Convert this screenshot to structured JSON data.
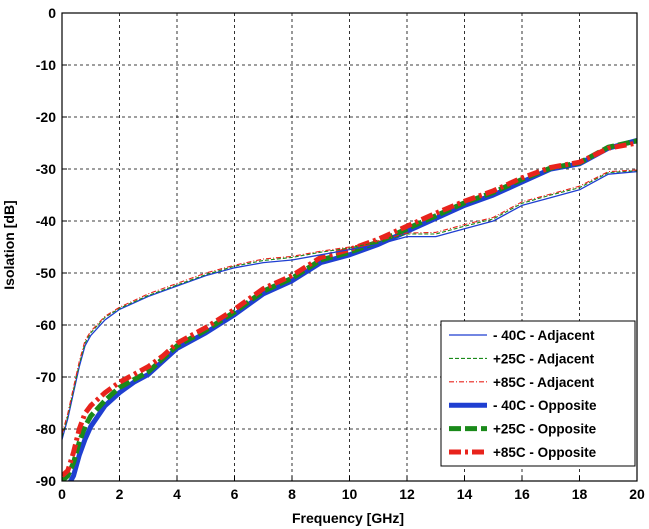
{
  "chart_data": {
    "type": "line",
    "xlabel": "Frequency [GHz]",
    "ylabel": "Isolation [dB]",
    "xlim": [
      0,
      20
    ],
    "ylim": [
      -90,
      0
    ],
    "xticks": [
      "0",
      "2",
      "4",
      "6",
      "8",
      "10",
      "12",
      "14",
      "16",
      "18",
      "20"
    ],
    "yticks": [
      "0",
      "-10",
      "-20",
      "-30",
      "-40",
      "-50",
      "-60",
      "-70",
      "-80",
      "-90"
    ],
    "grid": true,
    "legend_position": "bottom-right",
    "series": [
      {
        "name": "- 40C - Adjacent",
        "color": "#1f3fd1",
        "style": "solid-thin",
        "x": [
          0,
          0.2,
          0.4,
          0.6,
          0.8,
          1,
          1.5,
          2,
          3,
          4,
          5,
          6,
          7,
          8,
          9,
          10,
          11,
          12,
          13,
          14,
          15,
          16,
          17,
          18,
          19,
          20
        ],
        "y": [
          -82,
          -78,
          -73,
          -68,
          -64,
          -62,
          -59,
          -57,
          -54.5,
          -52.5,
          -50.5,
          -49,
          -48,
          -47.5,
          -46.5,
          -45.5,
          -44.5,
          -43,
          -43,
          -41.5,
          -40,
          -37,
          -35.5,
          -34,
          -31,
          -30.5
        ]
      },
      {
        "name": "+25C - Adjacent",
        "color": "#1a8a1a",
        "style": "dashed-thin",
        "x": [
          0,
          0.2,
          0.4,
          0.6,
          0.8,
          1,
          1.5,
          2,
          3,
          4,
          5,
          6,
          7,
          8,
          9,
          10,
          11,
          12,
          13,
          14,
          15,
          16,
          17,
          18,
          19,
          20
        ],
        "y": [
          -81.5,
          -77.5,
          -72.5,
          -67.5,
          -63.5,
          -61.5,
          -58.5,
          -56.8,
          -54.3,
          -52.3,
          -50.3,
          -48.7,
          -47.6,
          -47,
          -46,
          -45.2,
          -44,
          -42.5,
          -42.5,
          -41,
          -39.6,
          -36.6,
          -35,
          -33.6,
          -30.7,
          -30.3
        ]
      },
      {
        "name": "+85C - Adjacent",
        "color": "#e8231c",
        "style": "dashdot-thin",
        "x": [
          0,
          0.2,
          0.4,
          0.6,
          0.8,
          1,
          1.5,
          2,
          3,
          4,
          5,
          6,
          7,
          8,
          9,
          10,
          11,
          12,
          13,
          14,
          15,
          16,
          17,
          18,
          19,
          20
        ],
        "y": [
          -81,
          -77,
          -72,
          -67,
          -63,
          -61.2,
          -58.3,
          -56.6,
          -54,
          -52,
          -50,
          -48.5,
          -47.3,
          -46.8,
          -45.8,
          -45,
          -43.8,
          -42.3,
          -42.2,
          -40.7,
          -39.3,
          -36.3,
          -34.8,
          -33.3,
          -30.5,
          -30.2
        ]
      },
      {
        "name": "- 40C - Opposite",
        "color": "#1f3fd1",
        "style": "solid-thick",
        "x": [
          0.2,
          0.4,
          0.6,
          0.8,
          1,
          1.5,
          2,
          2.5,
          3,
          3.5,
          4,
          5,
          6,
          7,
          8,
          9,
          10,
          11,
          12,
          13,
          14,
          15,
          16,
          17,
          18,
          19,
          20
        ],
        "y": [
          -91,
          -89,
          -85,
          -82,
          -79.5,
          -75.5,
          -73,
          -71,
          -69.5,
          -67,
          -64.5,
          -61.5,
          -58,
          -54,
          -51.5,
          -48,
          -46.5,
          -44.5,
          -42,
          -39.5,
          -37,
          -35,
          -32.5,
          -30,
          -29,
          -26,
          -24.5
        ]
      },
      {
        "name": "+25C - Opposite",
        "color": "#1a8a1a",
        "style": "dashed-thick",
        "x": [
          0,
          0.2,
          0.4,
          0.6,
          0.8,
          1,
          1.5,
          2,
          2.5,
          3,
          3.5,
          4,
          5,
          6,
          7,
          8,
          9,
          10,
          11,
          12,
          13,
          14,
          15,
          16,
          17,
          18,
          19,
          20
        ],
        "y": [
          -90,
          -89,
          -86.5,
          -82.5,
          -79.5,
          -77.5,
          -74.5,
          -72,
          -70.5,
          -69,
          -66.5,
          -64,
          -61,
          -57.5,
          -53.5,
          -51,
          -47.5,
          -46,
          -44,
          -41.5,
          -39,
          -36.5,
          -34.5,
          -32,
          -29.8,
          -28.8,
          -25.8,
          -24.6
        ]
      },
      {
        "name": "+85C - Opposite",
        "color": "#e8231c",
        "style": "dashdot-thick",
        "x": [
          0,
          0.2,
          0.4,
          0.6,
          0.8,
          1,
          1.5,
          2,
          2.5,
          3,
          3.5,
          4,
          5,
          6,
          7,
          8,
          9,
          10,
          11,
          12,
          13,
          14,
          15,
          16,
          17,
          18,
          19,
          20
        ],
        "y": [
          -89,
          -88,
          -84.5,
          -80,
          -77,
          -75.5,
          -73,
          -71,
          -69.5,
          -68,
          -66,
          -63.5,
          -60.5,
          -57,
          -53,
          -50.5,
          -47,
          -45.5,
          -43.5,
          -41,
          -38.5,
          -36.2,
          -34.2,
          -31.7,
          -29.7,
          -28.7,
          -26,
          -25
        ]
      }
    ]
  }
}
